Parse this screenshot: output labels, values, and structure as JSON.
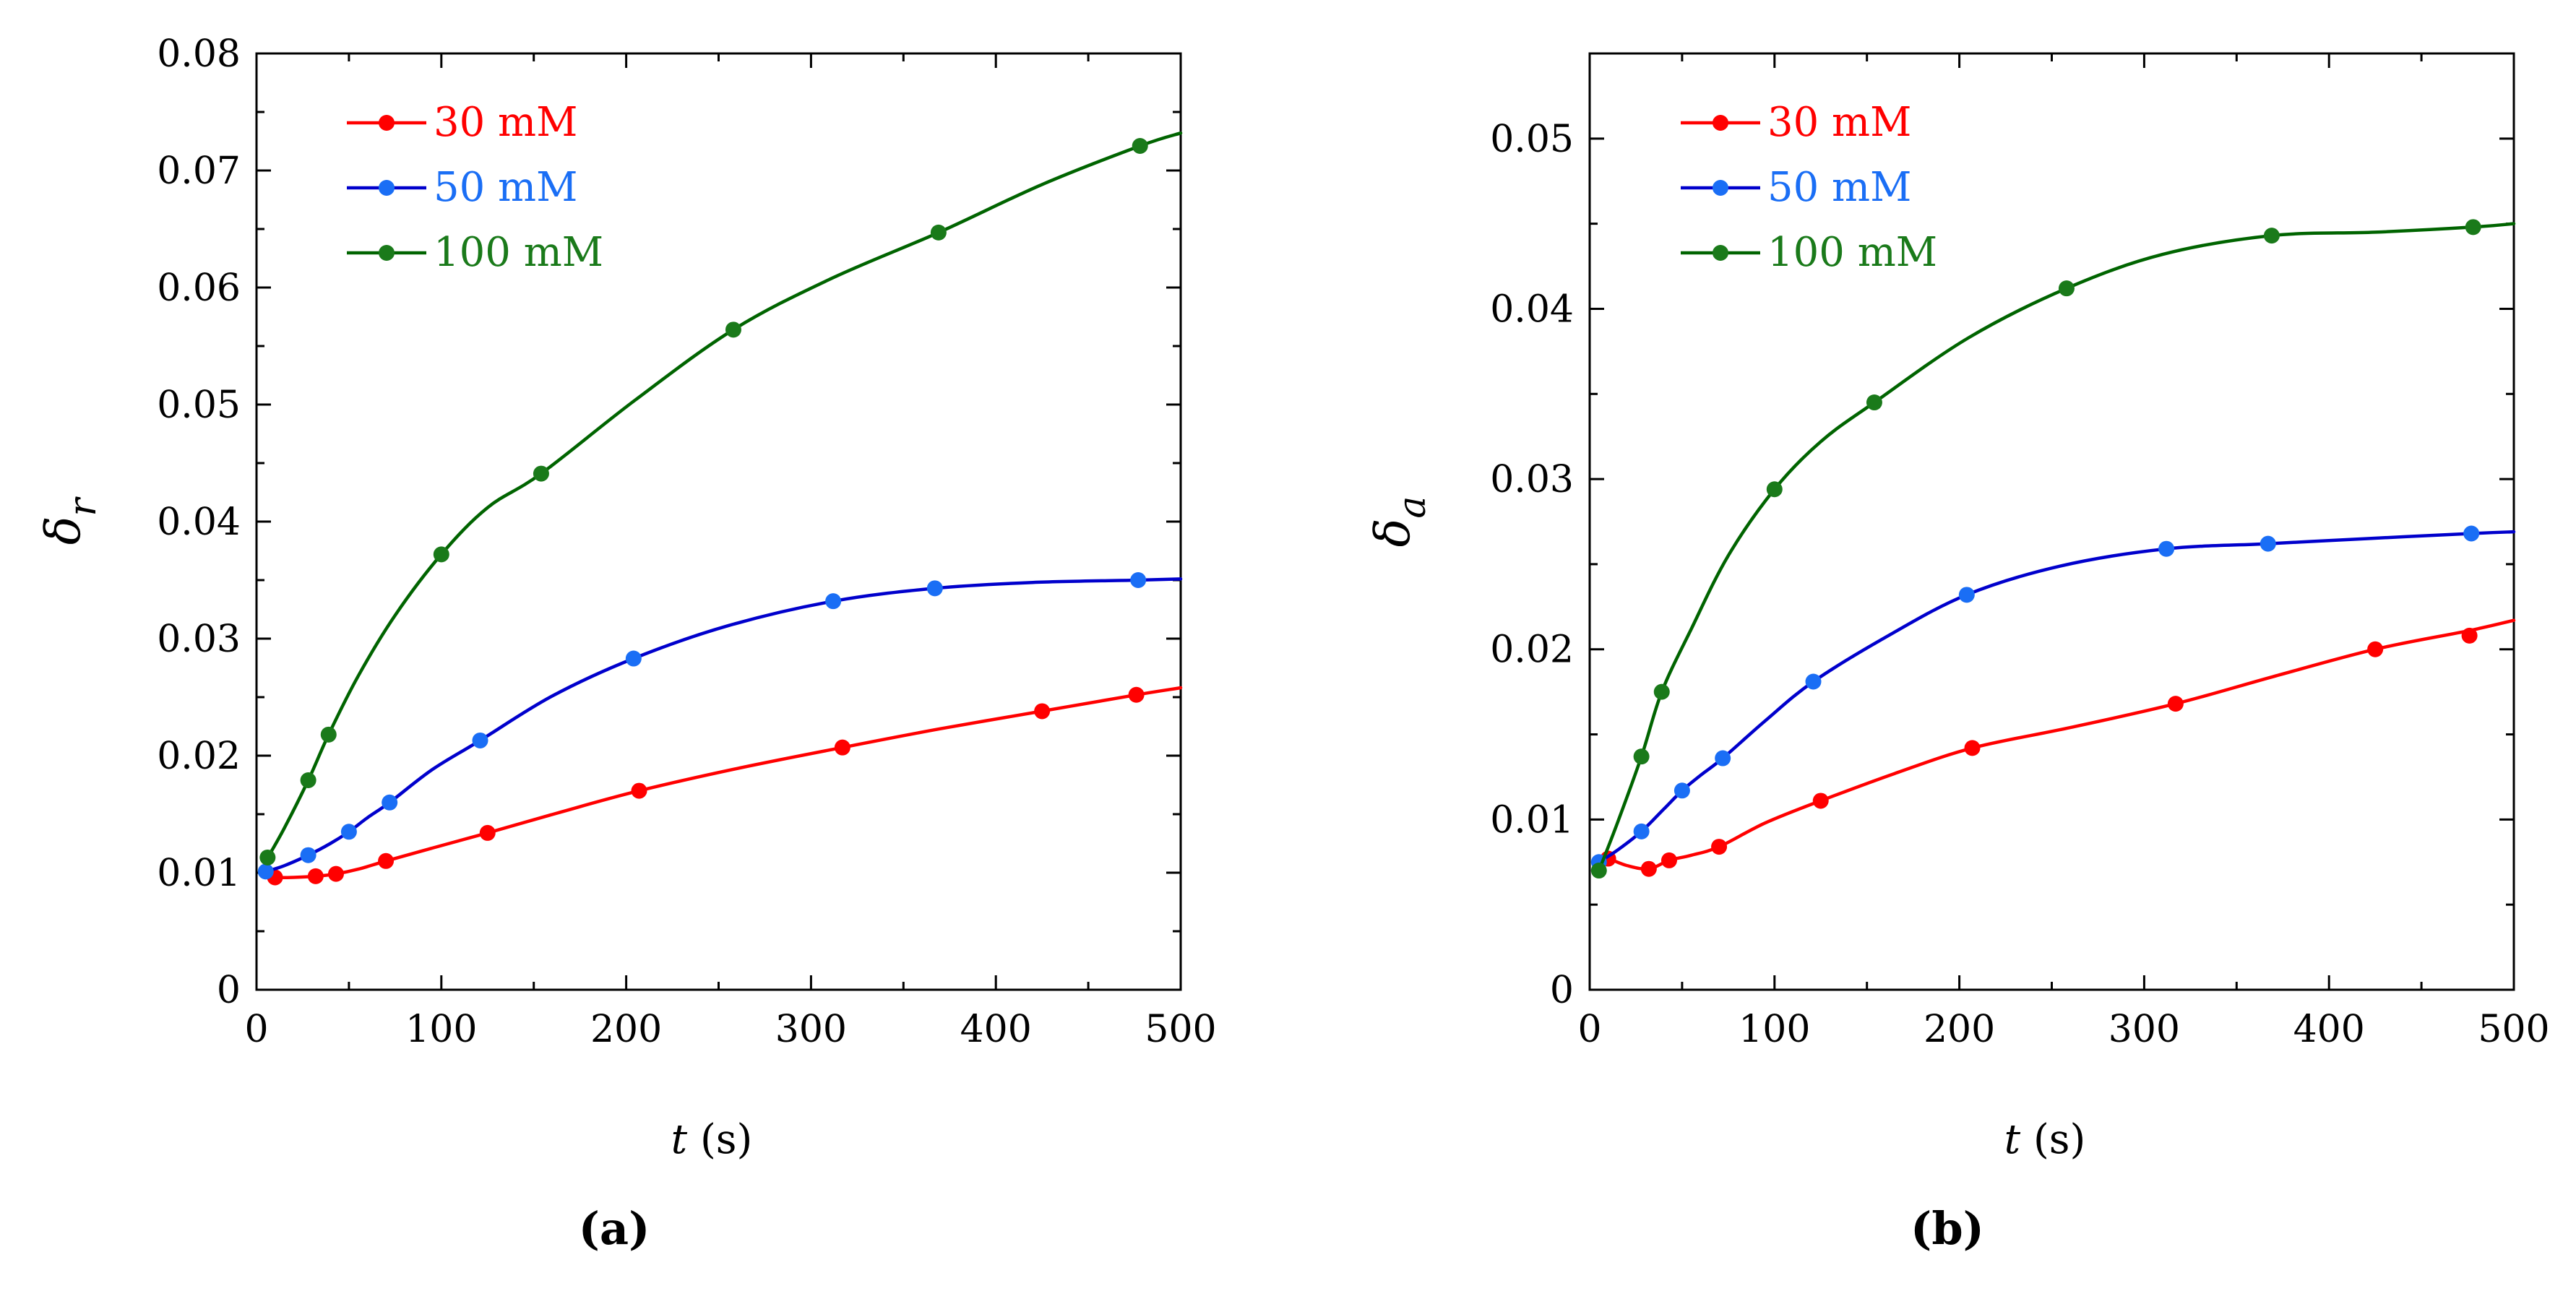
{
  "chart_data": [
    {
      "type": "line",
      "panel_label": "(a)",
      "ylabel_symbol": "δ",
      "ylabel_sub": "r",
      "xlabel_var": "t",
      "xlabel_unit": " (s)",
      "xlim": [
        0,
        500
      ],
      "ylim": [
        0,
        0.08
      ],
      "xticks": [
        0,
        100,
        200,
        300,
        400,
        500
      ],
      "xtick_labels": [
        "0",
        "100",
        "200",
        "300",
        "400",
        "500"
      ],
      "yticks": [
        0,
        0.01,
        0.02,
        0.03,
        0.04,
        0.05,
        0.06,
        0.07,
        0.08
      ],
      "ytick_labels": [
        "0",
        "0.01",
        "0.02",
        "0.03",
        "0.04",
        "0.05",
        "0.06",
        "0.07",
        "0.08"
      ],
      "legend_position": "top-left",
      "series": [
        {
          "name": "30 mM",
          "color": "#ff0000",
          "marker_color": "#ff0000",
          "markers": [
            [
              10,
              0.0096
            ],
            [
              32,
              0.0097
            ],
            [
              43,
              0.0099
            ],
            [
              70,
              0.011
            ],
            [
              125,
              0.0134
            ],
            [
              207,
              0.017
            ],
            [
              317,
              0.0207
            ],
            [
              425,
              0.0238
            ],
            [
              476,
              0.0252
            ]
          ],
          "curve": [
            [
              5,
              0.0098
            ],
            [
              10,
              0.0096
            ],
            [
              20,
              0.0096
            ],
            [
              32,
              0.0097
            ],
            [
              43,
              0.0099
            ],
            [
              55,
              0.0103
            ],
            [
              70,
              0.011
            ],
            [
              95,
              0.0121
            ],
            [
              125,
              0.0134
            ],
            [
              165,
              0.0152
            ],
            [
              207,
              0.017
            ],
            [
              260,
              0.0189
            ],
            [
              317,
              0.0207
            ],
            [
              370,
              0.0223
            ],
            [
              425,
              0.0238
            ],
            [
              476,
              0.0252
            ],
            [
              500,
              0.0258
            ]
          ]
        },
        {
          "name": "50 mM",
          "color": "#0000cc",
          "marker_color": "#1a6ef5",
          "markers": [
            [
              5,
              0.0101
            ],
            [
              28,
              0.0115
            ],
            [
              50,
              0.0135
            ],
            [
              72,
              0.016
            ],
            [
              121,
              0.0213
            ],
            [
              204,
              0.0283
            ],
            [
              312,
              0.0332
            ],
            [
              367,
              0.0343
            ],
            [
              477,
              0.035
            ]
          ],
          "curve": [
            [
              5,
              0.0101
            ],
            [
              15,
              0.0106
            ],
            [
              28,
              0.0115
            ],
            [
              40,
              0.0125
            ],
            [
              50,
              0.0135
            ],
            [
              60,
              0.0147
            ],
            [
              72,
              0.016
            ],
            [
              95,
              0.0188
            ],
            [
              121,
              0.0213
            ],
            [
              160,
              0.0251
            ],
            [
              204,
              0.0283
            ],
            [
              255,
              0.0311
            ],
            [
              312,
              0.0332
            ],
            [
              367,
              0.0343
            ],
            [
              420,
              0.0348
            ],
            [
              477,
              0.035
            ],
            [
              500,
              0.0351
            ]
          ]
        },
        {
          "name": "100 mM",
          "color": "#006400",
          "marker_color": "#1a7a1a",
          "markers": [
            [
              6,
              0.0113
            ],
            [
              28,
              0.0179
            ],
            [
              39,
              0.0218
            ],
            [
              100,
              0.0372
            ],
            [
              154,
              0.0441
            ],
            [
              258,
              0.0564
            ],
            [
              369,
              0.0647
            ],
            [
              478,
              0.0721
            ]
          ],
          "curve": [
            [
              5,
              0.011
            ],
            [
              15,
              0.0138
            ],
            [
              28,
              0.0179
            ],
            [
              39,
              0.0218
            ],
            [
              55,
              0.0268
            ],
            [
              75,
              0.032
            ],
            [
              100,
              0.0372
            ],
            [
              125,
              0.0412
            ],
            [
              154,
              0.0441
            ],
            [
              205,
              0.0504
            ],
            [
              258,
              0.0564
            ],
            [
              310,
              0.0607
            ],
            [
              369,
              0.0647
            ],
            [
              425,
              0.0688
            ],
            [
              478,
              0.0721
            ],
            [
              500,
              0.0732
            ]
          ]
        }
      ]
    },
    {
      "type": "line",
      "panel_label": "(b)",
      "ylabel_symbol": "δ",
      "ylabel_sub": "a",
      "xlabel_var": "t",
      "xlabel_unit": " (s)",
      "xlim": [
        0,
        500
      ],
      "ylim": [
        0,
        0.055
      ],
      "xticks": [
        0,
        100,
        200,
        300,
        400,
        500
      ],
      "xtick_labels": [
        "0",
        "100",
        "200",
        "300",
        "400",
        "500"
      ],
      "yticks": [
        0,
        0.01,
        0.02,
        0.03,
        0.04,
        0.05
      ],
      "ytick_labels": [
        "0",
        "0.01",
        "0.02",
        "0.03",
        "0.04",
        "0.05"
      ],
      "legend_position": "top-left",
      "series": [
        {
          "name": "30 mM",
          "color": "#ff0000",
          "marker_color": "#ff0000",
          "markers": [
            [
              10,
              0.0077
            ],
            [
              32,
              0.0071
            ],
            [
              43,
              0.0076
            ],
            [
              70,
              0.0084
            ],
            [
              125,
              0.0111
            ],
            [
              207,
              0.0142
            ],
            [
              317,
              0.0168
            ],
            [
              425,
              0.02
            ],
            [
              476,
              0.0208
            ]
          ],
          "curve": [
            [
              5,
              0.0077
            ],
            [
              10,
              0.0077
            ],
            [
              20,
              0.0073
            ],
            [
              32,
              0.0071
            ],
            [
              43,
              0.0076
            ],
            [
              55,
              0.0079
            ],
            [
              70,
              0.0084
            ],
            [
              95,
              0.0098
            ],
            [
              125,
              0.0111
            ],
            [
              165,
              0.0127
            ],
            [
              207,
              0.0142
            ],
            [
              260,
              0.0154
            ],
            [
              317,
              0.0168
            ],
            [
              370,
              0.0184
            ],
            [
              425,
              0.02
            ],
            [
              476,
              0.0211
            ],
            [
              500,
              0.0217
            ]
          ]
        },
        {
          "name": "50 mM",
          "color": "#0000cc",
          "marker_color": "#1a6ef5",
          "markers": [
            [
              5,
              0.0075
            ],
            [
              28,
              0.0093
            ],
            [
              50,
              0.0117
            ],
            [
              72,
              0.0136
            ],
            [
              121,
              0.0181
            ],
            [
              204,
              0.0232
            ],
            [
              312,
              0.0259
            ],
            [
              367,
              0.0262
            ],
            [
              477,
              0.0268
            ]
          ],
          "curve": [
            [
              5,
              0.0075
            ],
            [
              15,
              0.0082
            ],
            [
              28,
              0.0093
            ],
            [
              40,
              0.0106
            ],
            [
              50,
              0.0117
            ],
            [
              60,
              0.0126
            ],
            [
              72,
              0.0136
            ],
            [
              95,
              0.0158
            ],
            [
              121,
              0.0181
            ],
            [
              160,
              0.0207
            ],
            [
              204,
              0.0232
            ],
            [
              255,
              0.0249
            ],
            [
              312,
              0.0259
            ],
            [
              367,
              0.0262
            ],
            [
              420,
              0.0265
            ],
            [
              477,
              0.0268
            ],
            [
              500,
              0.0269
            ]
          ]
        },
        {
          "name": "100 mM",
          "color": "#006400",
          "marker_color": "#1a7a1a",
          "markers": [
            [
              5,
              0.007
            ],
            [
              28,
              0.0137
            ],
            [
              39,
              0.0175
            ],
            [
              100,
              0.0294
            ],
            [
              154,
              0.0345
            ],
            [
              258,
              0.0412
            ],
            [
              369,
              0.0443
            ],
            [
              478,
              0.0448
            ]
          ],
          "curve": [
            [
              5,
              0.007
            ],
            [
              15,
              0.0098
            ],
            [
              28,
              0.0137
            ],
            [
              39,
              0.0175
            ],
            [
              55,
              0.0212
            ],
            [
              75,
              0.0255
            ],
            [
              100,
              0.0294
            ],
            [
              125,
              0.0322
            ],
            [
              154,
              0.0345
            ],
            [
              205,
              0.0383
            ],
            [
              258,
              0.0412
            ],
            [
              310,
              0.0432
            ],
            [
              369,
              0.0443
            ],
            [
              425,
              0.0445
            ],
            [
              478,
              0.0448
            ],
            [
              500,
              0.045
            ]
          ]
        }
      ]
    }
  ]
}
